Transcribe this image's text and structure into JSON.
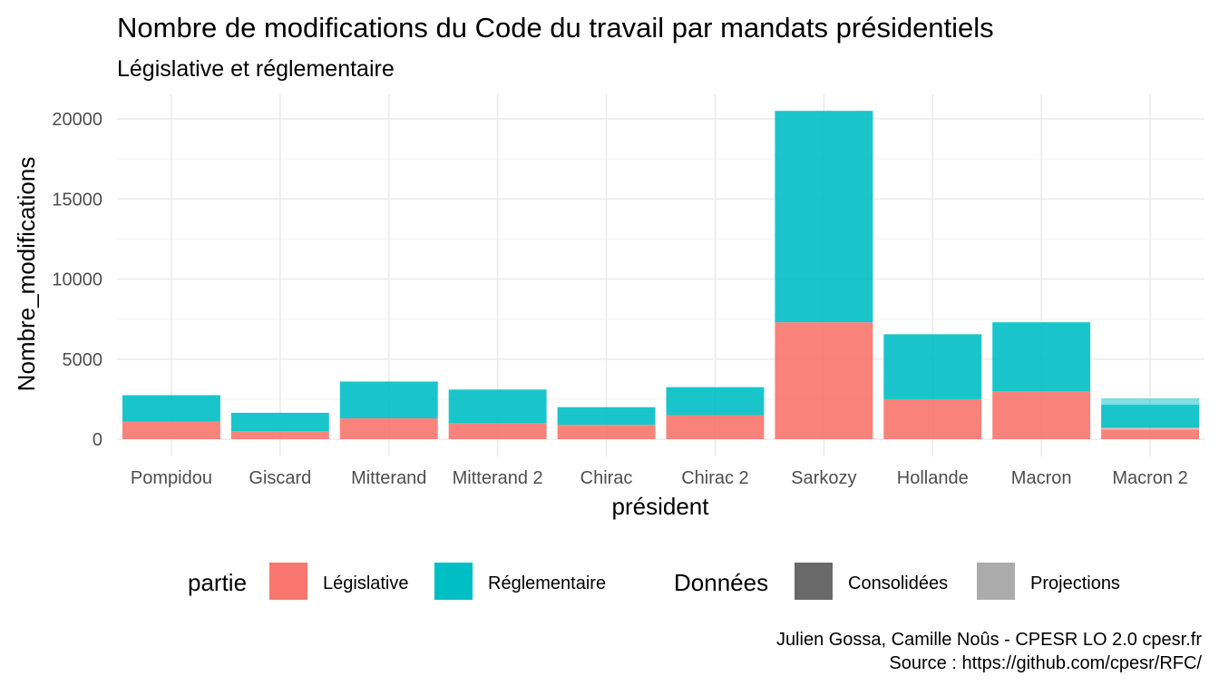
{
  "chart_data": {
    "type": "bar",
    "stacked": true,
    "title": "Nombre de modifications du Code du travail par mandats présidentiels",
    "subtitle": "Législative et réglementaire",
    "xlabel": "président",
    "ylabel": "Nombre_modifications",
    "ylim": [
      0,
      21500
    ],
    "yticks": [
      0,
      5000,
      10000,
      15000,
      20000
    ],
    "grid": true,
    "categories": [
      "Pompidou",
      "Giscard",
      "Mitterand",
      "Mitterand 2",
      "Chirac",
      "Chirac 2",
      "Sarkozy",
      "Hollande",
      "Macron",
      "Macron 2"
    ],
    "series": [
      {
        "name": "Législative",
        "color": "#F8766D",
        "values": [
          1100,
          500,
          1300,
          1000,
          900,
          1500,
          7300,
          2500,
          3000,
          600
        ]
      },
      {
        "name": "Réglementaire",
        "color": "#00BFC4",
        "values": [
          1650,
          1150,
          2300,
          2100,
          1100,
          1750,
          13200,
          4050,
          4300,
          1450
        ]
      }
    ],
    "projections": [
      {
        "category": "Macron 2",
        "series": "Législative",
        "value": 100
      },
      {
        "category": "Macron 2",
        "series": "Réglementaire",
        "value": 400
      }
    ],
    "legend": {
      "position": "bottom",
      "groups": [
        {
          "title": "partie",
          "items": [
            {
              "label": "Législative",
              "color": "#F8766D"
            },
            {
              "label": "Réglementaire",
              "color": "#00BFC4"
            }
          ]
        },
        {
          "title": "Données",
          "items": [
            {
              "label": "Consolidées",
              "color": "#696969"
            },
            {
              "label": "Projections",
              "color": "#ababab"
            }
          ]
        }
      ]
    },
    "caption": [
      "Julien Gossa, Camille Noûs - CPESR LO 2.0 cpesr.fr",
      "Source : https://github.com/cpesr/RFC/"
    ]
  }
}
